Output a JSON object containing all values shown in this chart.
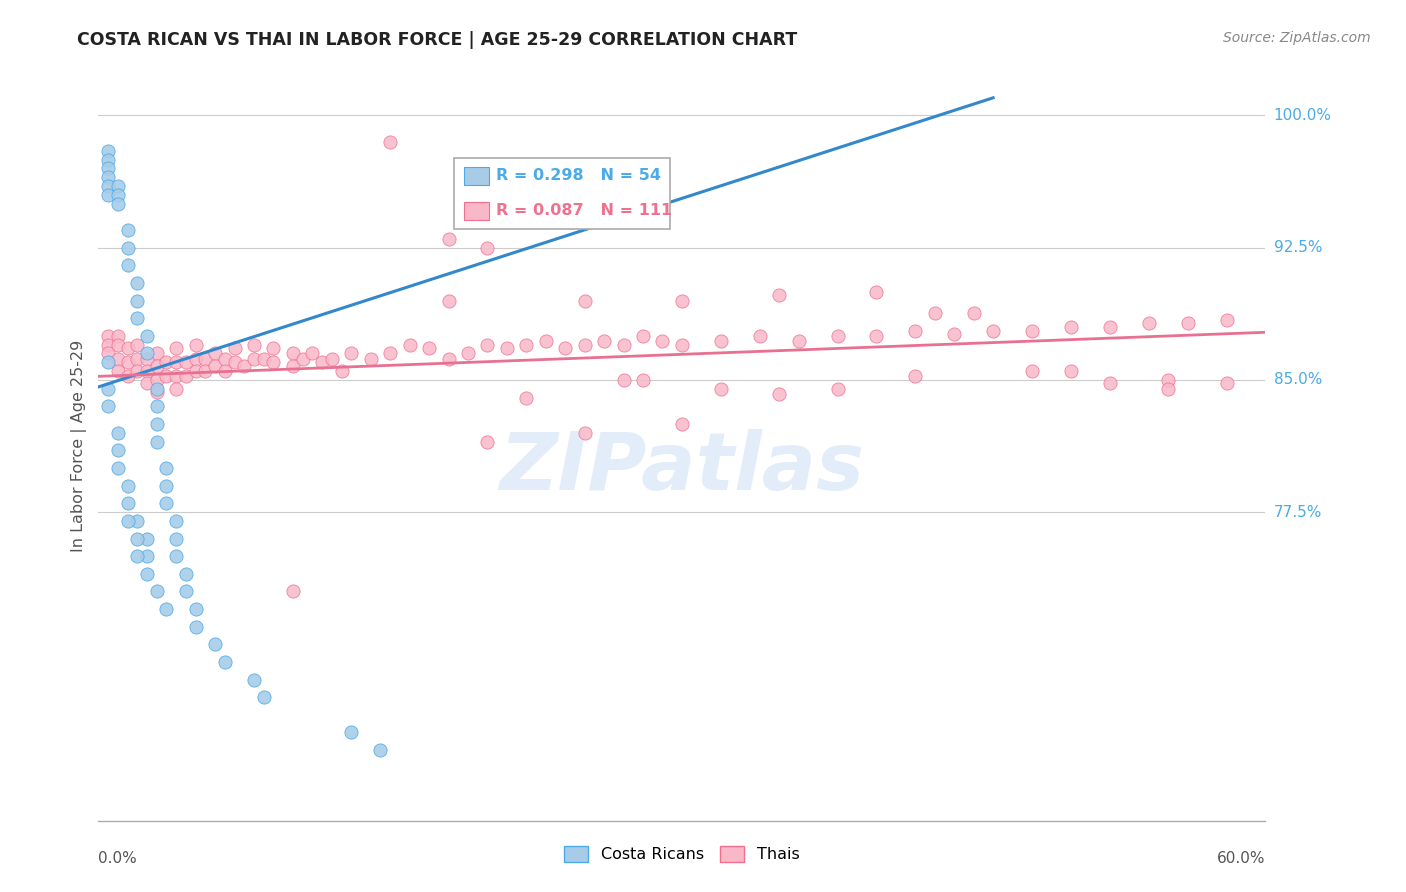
{
  "title": "COSTA RICAN VS THAI IN LABOR FORCE | AGE 25-29 CORRELATION CHART",
  "source": "Source: ZipAtlas.com",
  "color_blue": "#a8cce8",
  "color_blue_dark": "#4baae8",
  "color_blue_line": "#3388cc",
  "color_pink": "#f9b8c8",
  "color_pink_dark": "#f07090",
  "color_pink_line": "#e87090",
  "color_ylabel": "#4baae8",
  "legend_blue_r": "R = 0.298",
  "legend_blue_n": "N = 54",
  "legend_pink_r": "R = 0.087",
  "legend_pink_n": "N = 111",
  "legend_label_blue": "Costa Ricans",
  "legend_label_pink": "Thais",
  "watermark": "ZIPatlas",
  "xmin": 0.0,
  "xmax": 0.6,
  "ymin": 0.6,
  "ymax": 1.025,
  "yticks": [
    0.775,
    0.85,
    0.925,
    1.0
  ],
  "ytick_labels": [
    "77.5%",
    "85.0%",
    "92.5%",
    "100.0%"
  ],
  "blue_trend_x0": 0.0,
  "blue_trend_y0": 0.846,
  "blue_trend_x1": 0.46,
  "blue_trend_y1": 1.01,
  "pink_trend_x0": 0.0,
  "pink_trend_y0": 0.852,
  "pink_trend_x1": 0.6,
  "pink_trend_y1": 0.877,
  "blue_x": [
    0.005,
    0.005,
    0.005,
    0.005,
    0.005,
    0.005,
    0.005,
    0.005,
    0.005,
    0.01,
    0.01,
    0.01,
    0.01,
    0.01,
    0.01,
    0.015,
    0.015,
    0.015,
    0.015,
    0.015,
    0.02,
    0.02,
    0.02,
    0.02,
    0.025,
    0.025,
    0.025,
    0.025,
    0.03,
    0.03,
    0.03,
    0.03,
    0.035,
    0.035,
    0.035,
    0.04,
    0.04,
    0.04,
    0.045,
    0.045,
    0.05,
    0.05,
    0.06,
    0.065,
    0.08,
    0.085,
    0.13,
    0.145,
    0.015,
    0.02,
    0.02,
    0.025,
    0.03,
    0.035
  ],
  "blue_y": [
    0.98,
    0.975,
    0.97,
    0.965,
    0.96,
    0.955,
    0.86,
    0.845,
    0.835,
    0.96,
    0.955,
    0.95,
    0.82,
    0.81,
    0.8,
    0.935,
    0.925,
    0.915,
    0.79,
    0.78,
    0.905,
    0.895,
    0.885,
    0.77,
    0.875,
    0.865,
    0.76,
    0.75,
    0.845,
    0.835,
    0.825,
    0.815,
    0.8,
    0.79,
    0.78,
    0.77,
    0.76,
    0.75,
    0.74,
    0.73,
    0.72,
    0.71,
    0.7,
    0.69,
    0.68,
    0.67,
    0.65,
    0.64,
    0.77,
    0.76,
    0.75,
    0.74,
    0.73,
    0.72
  ],
  "pink_x": [
    0.005,
    0.005,
    0.005,
    0.01,
    0.01,
    0.01,
    0.01,
    0.015,
    0.015,
    0.015,
    0.02,
    0.02,
    0.02,
    0.025,
    0.025,
    0.025,
    0.03,
    0.03,
    0.03,
    0.03,
    0.035,
    0.035,
    0.04,
    0.04,
    0.04,
    0.04,
    0.045,
    0.045,
    0.05,
    0.05,
    0.05,
    0.055,
    0.055,
    0.06,
    0.06,
    0.065,
    0.065,
    0.07,
    0.07,
    0.075,
    0.08,
    0.08,
    0.085,
    0.09,
    0.09,
    0.1,
    0.1,
    0.105,
    0.11,
    0.115,
    0.12,
    0.125,
    0.13,
    0.14,
    0.15,
    0.16,
    0.17,
    0.18,
    0.19,
    0.2,
    0.21,
    0.22,
    0.23,
    0.24,
    0.25,
    0.26,
    0.27,
    0.28,
    0.29,
    0.3,
    0.32,
    0.34,
    0.36,
    0.38,
    0.4,
    0.42,
    0.44,
    0.46,
    0.48,
    0.5,
    0.52,
    0.54,
    0.56,
    0.58,
    0.18,
    0.2,
    0.25,
    0.3,
    0.35,
    0.4,
    0.45,
    0.22,
    0.27,
    0.32,
    0.38,
    0.42,
    0.2,
    0.3,
    0.25,
    0.15,
    0.1,
    0.55,
    0.48,
    0.52,
    0.43,
    0.18,
    0.28,
    0.35,
    0.5,
    0.55,
    0.58
  ],
  "pink_y": [
    0.875,
    0.87,
    0.865,
    0.875,
    0.87,
    0.862,
    0.855,
    0.868,
    0.86,
    0.852,
    0.87,
    0.862,
    0.855,
    0.862,
    0.855,
    0.848,
    0.865,
    0.858,
    0.85,
    0.843,
    0.86,
    0.852,
    0.868,
    0.86,
    0.852,
    0.845,
    0.86,
    0.852,
    0.87,
    0.862,
    0.855,
    0.862,
    0.855,
    0.865,
    0.858,
    0.862,
    0.855,
    0.868,
    0.86,
    0.858,
    0.87,
    0.862,
    0.862,
    0.868,
    0.86,
    0.865,
    0.858,
    0.862,
    0.865,
    0.86,
    0.862,
    0.855,
    0.865,
    0.862,
    0.865,
    0.87,
    0.868,
    0.862,
    0.865,
    0.87,
    0.868,
    0.87,
    0.872,
    0.868,
    0.87,
    0.872,
    0.87,
    0.875,
    0.872,
    0.87,
    0.872,
    0.875,
    0.872,
    0.875,
    0.875,
    0.878,
    0.876,
    0.878,
    0.878,
    0.88,
    0.88,
    0.882,
    0.882,
    0.884,
    0.93,
    0.925,
    0.895,
    0.895,
    0.898,
    0.9,
    0.888,
    0.84,
    0.85,
    0.845,
    0.845,
    0.852,
    0.815,
    0.825,
    0.82,
    0.985,
    0.73,
    0.85,
    0.855,
    0.848,
    0.888,
    0.895,
    0.85,
    0.842,
    0.855,
    0.845,
    0.848
  ]
}
